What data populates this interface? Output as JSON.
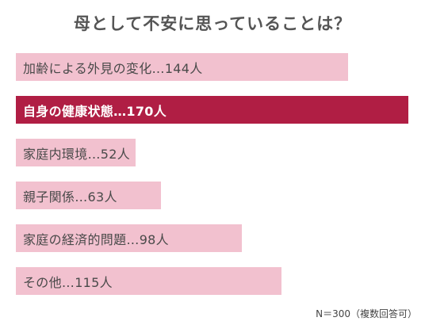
{
  "chart_data": {
    "type": "bar",
    "orientation": "horizontal",
    "title": "母として不安に思っていることは？",
    "categories": [
      "加齢による外見の変化",
      "自身の健康状態",
      "家庭内環境",
      "親子関係",
      "家庭の経済的問題",
      "その他"
    ],
    "values": [
      144,
      170,
      52,
      63,
      98,
      115
    ],
    "labels": [
      "加齢による外見の変化…144人",
      "自身の健康状態…170人",
      "家庭内環境…52人",
      "親子関係…63人",
      "家庭の経済的問題…98人",
      "その他…115人"
    ],
    "highlight_index": 1,
    "unit": "人",
    "grid": false,
    "legend": "none",
    "footnote": "N＝300（複数回答可）"
  },
  "colors": {
    "bar": "#f2c1cf",
    "highlight_bar": "#b01e44",
    "title": "#555555",
    "label": "#4a4a4a",
    "highlight_label": "#ffffff"
  }
}
